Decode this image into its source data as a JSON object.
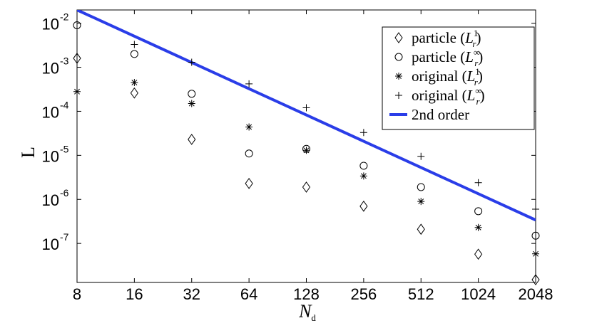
{
  "chart_data": {
    "type": "scatter",
    "xscale": "log2",
    "yscale": "log10",
    "x_ticks": [
      8,
      16,
      32,
      64,
      128,
      256,
      512,
      1024,
      2048
    ],
    "y_tick_exponents": [
      -2,
      -3,
      -4,
      -5,
      -6,
      -7
    ],
    "y_tick_base": "10",
    "xlim": [
      8,
      2048
    ],
    "ylim": [
      1.3e-08,
      0.02
    ],
    "xlabel": {
      "main": "N",
      "sub": "d"
    },
    "ylabel": "L",
    "grid": false,
    "legend_position": "top-right",
    "series": [
      {
        "name": "particle",
        "norm": "1",
        "marker": "diamond",
        "x": [
          8,
          16,
          32,
          64,
          128,
          256,
          512,
          1024,
          2048
        ],
        "y": [
          0.0016,
          0.00026,
          2.3e-05,
          2.3e-06,
          1.9e-06,
          7e-07,
          2.1e-07,
          5.7e-08,
          1.5e-08
        ]
      },
      {
        "name": "particle",
        "norm": "∞",
        "marker": "circle",
        "x": [
          8,
          16,
          32,
          64,
          128,
          256,
          512,
          1024,
          2048
        ],
        "y": [
          0.009,
          0.002,
          0.00025,
          1.1e-05,
          1.4e-05,
          5.8e-06,
          1.9e-06,
          5.4e-07,
          1.5e-07
        ]
      },
      {
        "name": "original",
        "norm": "1",
        "marker": "star",
        "x": [
          8,
          16,
          32,
          64,
          128,
          256,
          512,
          1024,
          2048
        ],
        "y": [
          0.00028,
          0.00045,
          0.00015,
          4.4e-05,
          1.3e-05,
          3.4e-06,
          9e-07,
          2.3e-07,
          5.8e-08
        ]
      },
      {
        "name": "original",
        "norm": "∞",
        "marker": "plus",
        "x": [
          16,
          32,
          64,
          128,
          256,
          512,
          1024,
          2048
        ],
        "y": [
          0.0033,
          0.0013,
          0.00042,
          0.00012,
          3.3e-05,
          9.5e-06,
          2.4e-06,
          6e-07
        ]
      },
      {
        "name": "2nd order",
        "marker": "line",
        "color": "#2a3de8",
        "x": [
          8,
          2048
        ],
        "y": [
          0.02,
          3.4e-07
        ]
      }
    ]
  }
}
